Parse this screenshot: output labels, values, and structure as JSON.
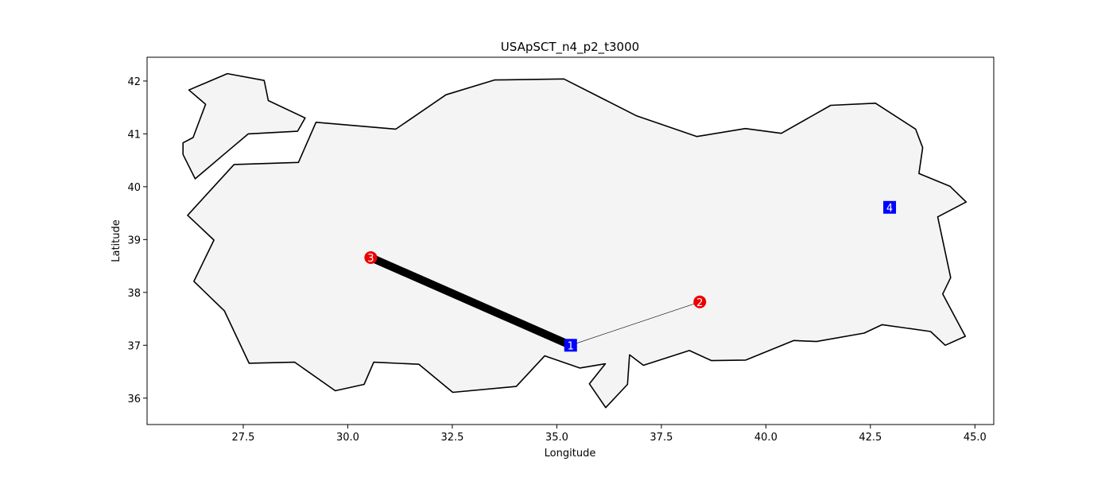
{
  "title": "USApSCT_n4_p2_t3000",
  "xlabel": "Longitude",
  "ylabel": "Latitude",
  "xticks": [
    "27.5",
    "30.0",
    "32.5",
    "35.0",
    "37.5",
    "40.0",
    "42.5",
    "45.0"
  ],
  "yticks": [
    "36",
    "37",
    "38",
    "39",
    "40",
    "41",
    "42"
  ],
  "chart_data": {
    "type": "map",
    "xlim": [
      25.2,
      45.45
    ],
    "ylim": [
      35.5,
      42.45
    ],
    "land_color": "#f4f4f4",
    "outline_color": "#000000",
    "regions": [
      {
        "name": "thrace",
        "coords": [
          [
            26.2,
            41.83
          ],
          [
            27.12,
            42.14
          ],
          [
            28.0,
            42.01
          ],
          [
            28.1,
            41.63
          ],
          [
            28.98,
            41.3
          ],
          [
            28.8,
            41.05
          ],
          [
            27.62,
            41.0
          ],
          [
            27.14,
            40.68
          ],
          [
            26.35,
            40.15
          ],
          [
            26.06,
            40.61
          ],
          [
            26.06,
            40.83
          ],
          [
            26.3,
            40.93
          ],
          [
            26.6,
            41.56
          ],
          [
            26.2,
            41.83
          ]
        ]
      },
      {
        "name": "anatolia",
        "coords": [
          [
            29.24,
            41.22
          ],
          [
            31.15,
            41.09
          ],
          [
            32.35,
            41.74
          ],
          [
            33.51,
            42.02
          ],
          [
            35.17,
            42.04
          ],
          [
            36.91,
            41.34
          ],
          [
            38.35,
            40.95
          ],
          [
            39.51,
            41.1
          ],
          [
            40.37,
            41.01
          ],
          [
            41.55,
            41.54
          ],
          [
            42.62,
            41.58
          ],
          [
            43.58,
            41.09
          ],
          [
            43.75,
            40.74
          ],
          [
            43.66,
            40.25
          ],
          [
            44.4,
            40.01
          ],
          [
            44.79,
            39.71
          ],
          [
            44.11,
            39.43
          ],
          [
            44.42,
            38.28
          ],
          [
            44.23,
            37.97
          ],
          [
            44.77,
            37.17
          ],
          [
            44.29,
            37.0
          ],
          [
            43.94,
            37.26
          ],
          [
            42.78,
            37.39
          ],
          [
            42.35,
            37.23
          ],
          [
            41.21,
            37.07
          ],
          [
            40.67,
            37.09
          ],
          [
            39.52,
            36.72
          ],
          [
            38.7,
            36.71
          ],
          [
            38.17,
            36.9
          ],
          [
            37.07,
            36.62
          ],
          [
            36.74,
            36.82
          ],
          [
            36.69,
            36.26
          ],
          [
            36.17,
            35.82
          ],
          [
            35.78,
            36.27
          ],
          [
            36.16,
            36.65
          ],
          [
            35.55,
            36.57
          ],
          [
            34.71,
            36.8
          ],
          [
            34.03,
            36.22
          ],
          [
            32.51,
            36.11
          ],
          [
            31.7,
            36.64
          ],
          [
            30.62,
            36.68
          ],
          [
            30.39,
            36.26
          ],
          [
            29.7,
            36.14
          ],
          [
            28.73,
            36.68
          ],
          [
            27.64,
            36.66
          ],
          [
            27.05,
            37.65
          ],
          [
            26.32,
            38.21
          ],
          [
            26.8,
            38.99
          ],
          [
            26.17,
            39.46
          ],
          [
            27.28,
            40.42
          ],
          [
            28.82,
            40.46
          ],
          [
            29.24,
            41.22
          ]
        ]
      }
    ],
    "nodes": [
      {
        "id": "1",
        "lon": 35.33,
        "lat": 37.0,
        "shape": "square",
        "color": "#0000ff"
      },
      {
        "id": "2",
        "lon": 38.42,
        "lat": 37.82,
        "shape": "circle",
        "color": "#ee0000"
      },
      {
        "id": "3",
        "lon": 30.55,
        "lat": 38.66,
        "shape": "circle",
        "color": "#ee0000"
      },
      {
        "id": "4",
        "lon": 42.96,
        "lat": 39.61,
        "shape": "square",
        "color": "#0000ff"
      }
    ],
    "edges": [
      {
        "from": "1",
        "to": "3",
        "width": 10
      },
      {
        "from": "1",
        "to": "2",
        "width": 0.6
      }
    ]
  }
}
